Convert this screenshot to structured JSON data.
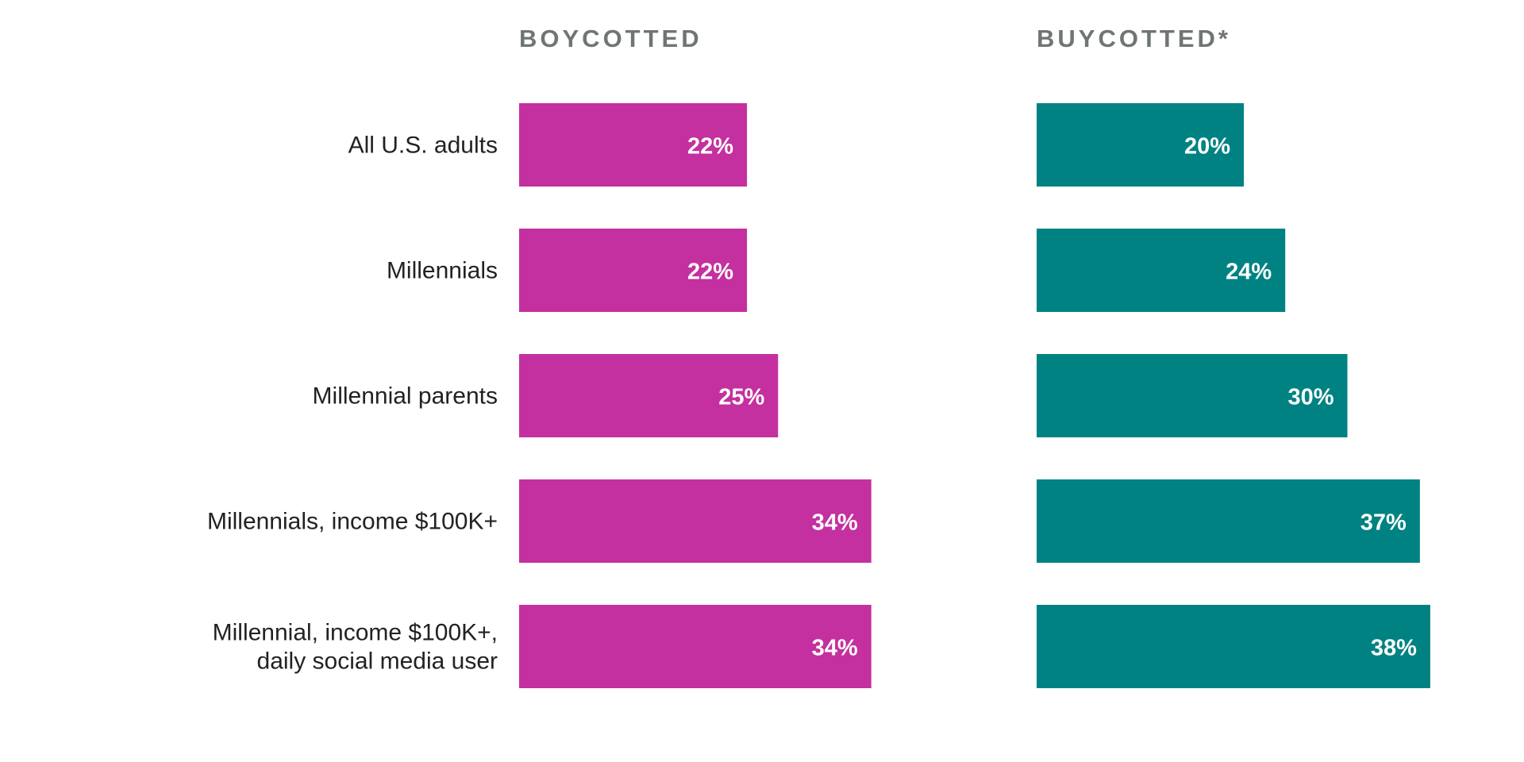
{
  "chart_data": {
    "type": "bar",
    "orientation": "horizontal",
    "categories": [
      [
        "All U.S. adults"
      ],
      [
        "Millennials"
      ],
      [
        "Millennial parents"
      ],
      [
        "Millennials, income $100K+"
      ],
      [
        "Millennial, income $100K+,",
        "daily social media user"
      ]
    ],
    "series": [
      {
        "name": "BOYCOTTED",
        "color": "#c4309f",
        "values": [
          22,
          22,
          25,
          34,
          34
        ],
        "labels": [
          "22%",
          "22%",
          "25%",
          "34%",
          "34%"
        ]
      },
      {
        "name": "BUYCOTTED*",
        "color": "#008282",
        "values": [
          20,
          24,
          30,
          37,
          38
        ],
        "labels": [
          "20%",
          "24%",
          "30%",
          "37%",
          "38%"
        ]
      }
    ],
    "unit": "%",
    "grid": false,
    "legend": "none",
    "ylim": [
      0,
      40
    ]
  }
}
